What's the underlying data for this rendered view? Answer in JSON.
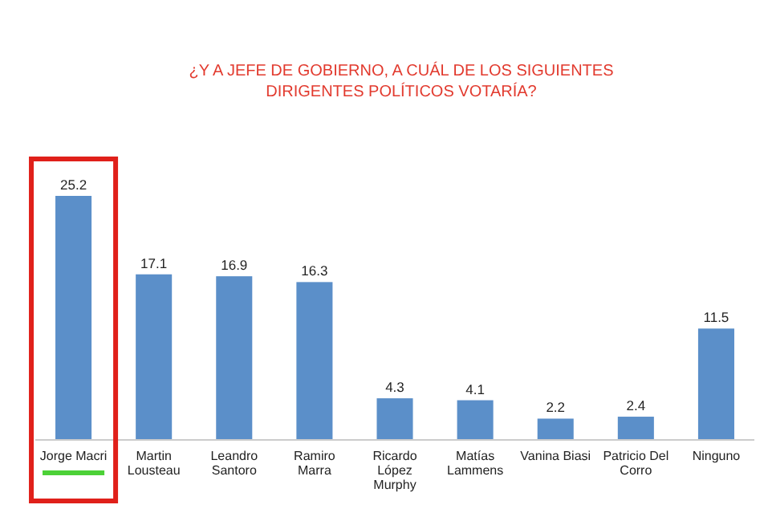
{
  "chart_data": {
    "type": "bar",
    "title": "¿Y A JEFE DE GOBIERNO, A CUÁL DE LOS SIGUIENTES DIRIGENTES POLÍTICOS VOTARÍA?",
    "categories": [
      "Jorge Macri",
      "Martin Lousteau",
      "Leandro Santoro",
      "Ramiro Marra",
      "Ricardo López Murphy",
      "Matías Lammens",
      "Vanina Biasi",
      "Patricio Del Corro",
      "Ninguno"
    ],
    "values": [
      25.2,
      17.1,
      16.9,
      16.3,
      4.3,
      4.1,
      2.2,
      2.4,
      11.5
    ],
    "color": "#5b8fc9",
    "data_labels": true
  }
}
